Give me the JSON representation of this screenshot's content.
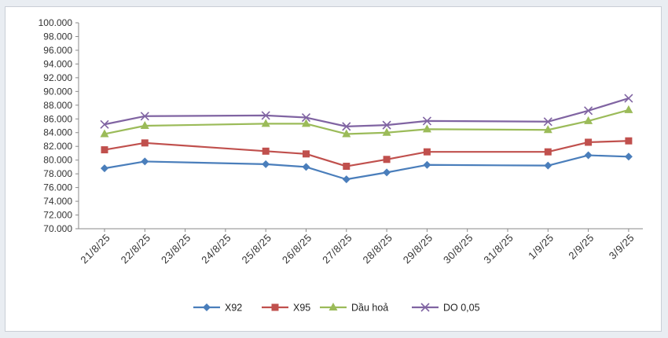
{
  "chart_data": {
    "type": "line",
    "title": "",
    "xlabel": "",
    "ylabel": "",
    "ylim": [
      70000,
      100000
    ],
    "ytick_step": 2000,
    "y_tick_labels": [
      "70.000",
      "72.000",
      "74.000",
      "76.000",
      "78.000",
      "80.000",
      "82.000",
      "84.000",
      "86.000",
      "88.000",
      "90.000",
      "92.000",
      "94.000",
      "96.000",
      "98.000",
      "100.000"
    ],
    "grid": false,
    "legend_position": "bottom",
    "categories": [
      "21/8/25",
      "22/8/25",
      "23/8/25",
      "24/8/25",
      "25/8/25",
      "26/8/25",
      "27/8/25",
      "28/8/25",
      "29/8/25",
      "30/8/25",
      "31/8/25",
      "1/9/25",
      "2/9/25",
      "3/9/25"
    ],
    "series": [
      {
        "name": "X92",
        "color": "#4a7ebb",
        "marker": "diamond",
        "values": [
          78800,
          79800,
          null,
          null,
          79400,
          79000,
          77200,
          78200,
          79300,
          null,
          null,
          79200,
          80700,
          80500
        ]
      },
      {
        "name": "X95",
        "color": "#c0504d",
        "marker": "square",
        "values": [
          81500,
          82500,
          null,
          null,
          81300,
          80900,
          79100,
          80100,
          81200,
          null,
          null,
          81200,
          82600,
          82800
        ]
      },
      {
        "name": "Dầu hoả",
        "color": "#9bbb59",
        "marker": "triangle",
        "values": [
          83800,
          85000,
          null,
          null,
          85300,
          85300,
          83800,
          84000,
          84500,
          null,
          null,
          84400,
          85700,
          87300
        ]
      },
      {
        "name": "DO 0,05",
        "color": "#8064a2",
        "marker": "x",
        "values": [
          85200,
          86400,
          null,
          null,
          86500,
          86200,
          84900,
          85100,
          85700,
          null,
          null,
          85600,
          87200,
          89000
        ]
      }
    ]
  }
}
